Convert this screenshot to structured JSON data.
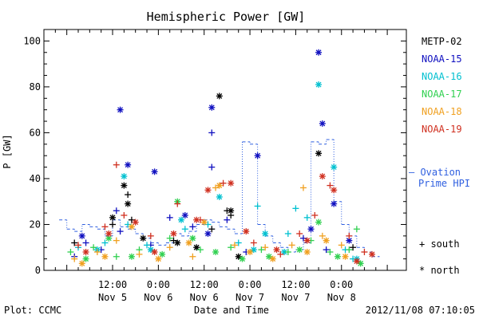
{
  "chart_data": {
    "type": "scatter",
    "title": "Hemispheric Power [GW]",
    "ylabel": "P [GW]",
    "xlabel": "Date and Time",
    "ylim": [
      0,
      105
    ],
    "yticks": [
      0,
      20,
      40,
      60,
      80,
      100
    ],
    "x_unit": "hours since Nov 5 00:00",
    "xlim": [
      -6,
      89
    ],
    "xticks": [
      {
        "x": 12,
        "time": "12:00",
        "date": "Nov 5"
      },
      {
        "x": 24,
        "time": "0:00",
        "date": "Nov 6"
      },
      {
        "x": 36,
        "time": "12:00",
        "date": "Nov 6"
      },
      {
        "x": 48,
        "time": "0:00",
        "date": "Nov 7"
      },
      {
        "x": 60,
        "time": "12:00",
        "date": "Nov 7"
      },
      {
        "x": 72,
        "time": "0:00",
        "date": "Nov 8"
      }
    ],
    "footer_left": "Plot: CCMC",
    "footer_right": "2012/11/08 07:10:05",
    "marker_legend": {
      "south": "+ south",
      "north": "* north"
    },
    "ovation_label": [
      "— Ovation",
      "Prime HPI"
    ],
    "series": [
      {
        "name": "METP-02",
        "color": "#000000",
        "south": [
          [
            2,
            12
          ],
          [
            12,
            20
          ],
          [
            16,
            33
          ],
          [
            17,
            22
          ],
          [
            28,
            13
          ],
          [
            42,
            26
          ],
          [
            43,
            24
          ],
          [
            38,
            18
          ],
          [
            75,
            10
          ]
        ],
        "north": [
          [
            12,
            23
          ],
          [
            15,
            37
          ],
          [
            16,
            29
          ],
          [
            20,
            14
          ],
          [
            29,
            12
          ],
          [
            34,
            10
          ],
          [
            43,
            26
          ],
          [
            40,
            76
          ],
          [
            66,
            51
          ],
          [
            45,
            6
          ]
        ]
      },
      {
        "name": "NOAA-15",
        "color": "#1010c0",
        "south": [
          [
            2,
            6
          ],
          [
            5,
            12
          ],
          [
            9,
            9
          ],
          [
            13,
            26
          ],
          [
            14,
            17
          ],
          [
            22,
            11
          ],
          [
            27,
            23
          ],
          [
            33,
            19
          ],
          [
            38,
            45
          ],
          [
            38,
            60
          ],
          [
            42,
            22
          ],
          [
            47,
            8
          ],
          [
            62,
            14
          ],
          [
            68,
            9
          ]
        ],
        "north": [
          [
            4,
            15
          ],
          [
            14,
            70
          ],
          [
            16,
            46
          ],
          [
            23,
            43
          ],
          [
            31,
            24
          ],
          [
            37,
            16
          ],
          [
            38,
            71
          ],
          [
            50,
            50
          ],
          [
            64,
            18
          ],
          [
            66,
            95
          ],
          [
            67,
            64
          ],
          [
            70,
            29
          ],
          [
            74,
            13
          ]
        ]
      },
      {
        "name": "NOAA-16",
        "color": "#00c0d0",
        "south": [
          [
            3,
            10
          ],
          [
            10,
            12
          ],
          [
            16,
            20
          ],
          [
            21,
            11
          ],
          [
            31,
            18
          ],
          [
            37,
            20
          ],
          [
            45,
            12
          ],
          [
            50,
            28
          ],
          [
            58,
            16
          ],
          [
            60,
            27
          ],
          [
            63,
            23
          ],
          [
            73,
            9
          ],
          [
            75,
            5
          ]
        ],
        "north": [
          [
            8,
            9
          ],
          [
            15,
            41
          ],
          [
            22,
            9
          ],
          [
            30,
            22
          ],
          [
            40,
            32
          ],
          [
            49,
            9
          ],
          [
            52,
            16
          ],
          [
            57,
            8
          ],
          [
            66,
            81
          ],
          [
            70,
            45
          ],
          [
            76,
            5
          ]
        ]
      },
      {
        "name": "NOAA-17",
        "color": "#30d050",
        "south": [
          [
            1,
            8
          ],
          [
            7,
            10
          ],
          [
            13,
            6
          ],
          [
            19,
            9
          ],
          [
            27,
            14
          ],
          [
            35,
            9
          ],
          [
            43,
            10
          ],
          [
            51,
            9
          ],
          [
            58,
            8
          ],
          [
            64,
            13
          ],
          [
            69,
            8
          ],
          [
            74,
            9
          ],
          [
            76,
            18
          ]
        ],
        "north": [
          [
            5,
            5
          ],
          [
            11,
            14
          ],
          [
            17,
            6
          ],
          [
            25,
            7
          ],
          [
            29,
            30
          ],
          [
            33,
            14
          ],
          [
            39,
            8
          ],
          [
            46,
            5
          ],
          [
            53,
            6
          ],
          [
            61,
            9
          ],
          [
            66,
            21
          ],
          [
            71,
            6
          ],
          [
            77,
            3
          ]
        ]
      },
      {
        "name": "NOAA-18",
        "color": "#f0a020",
        "south": [
          [
            2,
            5
          ],
          [
            8,
            8
          ],
          [
            13,
            13
          ],
          [
            19,
            7
          ],
          [
            27,
            10
          ],
          [
            33,
            6
          ],
          [
            39,
            36
          ],
          [
            44,
            11
          ],
          [
            52,
            10
          ],
          [
            59,
            11
          ],
          [
            62,
            36
          ],
          [
            67,
            15
          ],
          [
            72,
            11
          ]
        ],
        "north": [
          [
            4,
            3
          ],
          [
            10,
            6
          ],
          [
            17,
            19
          ],
          [
            24,
            5
          ],
          [
            32,
            12
          ],
          [
            36,
            21
          ],
          [
            40,
            37
          ],
          [
            48,
            8
          ],
          [
            54,
            5
          ],
          [
            63,
            8
          ],
          [
            68,
            13
          ],
          [
            73,
            6
          ]
        ]
      },
      {
        "name": "NOAA-19",
        "color": "#d03020",
        "south": [
          [
            3,
            11
          ],
          [
            10,
            19
          ],
          [
            13,
            46
          ],
          [
            15,
            24
          ],
          [
            22,
            15
          ],
          [
            29,
            29
          ],
          [
            35,
            22
          ],
          [
            41,
            38
          ],
          [
            49,
            12
          ],
          [
            56,
            7
          ],
          [
            61,
            16
          ],
          [
            65,
            24
          ],
          [
            69,
            37
          ],
          [
            74,
            15
          ],
          [
            78,
            8
          ]
        ],
        "north": [
          [
            5,
            8
          ],
          [
            11,
            16
          ],
          [
            18,
            21
          ],
          [
            23,
            8
          ],
          [
            28,
            16
          ],
          [
            34,
            22
          ],
          [
            37,
            35
          ],
          [
            43,
            38
          ],
          [
            47,
            17
          ],
          [
            55,
            9
          ],
          [
            63,
            13
          ],
          [
            67,
            41
          ],
          [
            70,
            35
          ],
          [
            76,
            4
          ],
          [
            80,
            7
          ]
        ]
      }
    ],
    "ovation_hpi": {
      "color": "#3060e0",
      "points": [
        [
          -2,
          22
        ],
        [
          0,
          18
        ],
        [
          2,
          17
        ],
        [
          4,
          20
        ],
        [
          6,
          19
        ],
        [
          8,
          18
        ],
        [
          10,
          15
        ],
        [
          12,
          22
        ],
        [
          14,
          19
        ],
        [
          16,
          18
        ],
        [
          18,
          16
        ],
        [
          20,
          14
        ],
        [
          22,
          12
        ],
        [
          24,
          11
        ],
        [
          26,
          12
        ],
        [
          28,
          16
        ],
        [
          30,
          15
        ],
        [
          32,
          17
        ],
        [
          34,
          20
        ],
        [
          36,
          22
        ],
        [
          38,
          21
        ],
        [
          40,
          19
        ],
        [
          42,
          18
        ],
        [
          44,
          16
        ],
        [
          46,
          56
        ],
        [
          48,
          55
        ],
        [
          50,
          20
        ],
        [
          52,
          15
        ],
        [
          54,
          12
        ],
        [
          56,
          10
        ],
        [
          58,
          8
        ],
        [
          60,
          9
        ],
        [
          62,
          12
        ],
        [
          64,
          56
        ],
        [
          66,
          55
        ],
        [
          68,
          57
        ],
        [
          70,
          30
        ],
        [
          72,
          20
        ],
        [
          74,
          15
        ],
        [
          76,
          10
        ],
        [
          78,
          8
        ],
        [
          80,
          6
        ]
      ]
    }
  }
}
